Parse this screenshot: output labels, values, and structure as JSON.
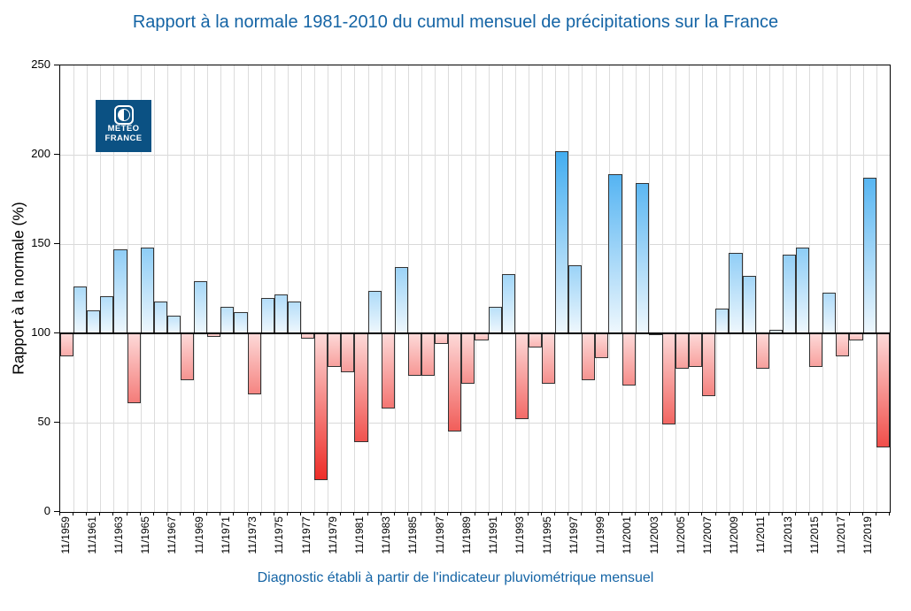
{
  "title": "Rapport à la normale 1981-2010 du cumul mensuel de précipitations sur la France",
  "footer": "Diagnostic établi à partir de l'indicateur pluviométrique mensuel",
  "logo": {
    "line1": "METEO",
    "line2": "FRANCE"
  },
  "y_axis": {
    "label": "Rapport à la normale (%)",
    "ticks": [
      0,
      50,
      100,
      150,
      200,
      250
    ]
  },
  "chart_data": {
    "type": "bar",
    "title": "Rapport à la normale 1981-2010 du cumul mensuel de précipitations sur la France",
    "xlabel": "",
    "ylabel": "Rapport à la normale (%)",
    "ylim": [
      0,
      250
    ],
    "baseline": 100,
    "grid": true,
    "legend": "none",
    "categories": [
      "11/1959",
      "11/1960",
      "11/1961",
      "11/1962",
      "11/1963",
      "11/1964",
      "11/1965",
      "11/1966",
      "11/1967",
      "11/1968",
      "11/1969",
      "11/1970",
      "11/1971",
      "11/1972",
      "11/1973",
      "11/1974",
      "11/1975",
      "11/1976",
      "11/1977",
      "11/1978",
      "11/1979",
      "11/1980",
      "11/1981",
      "11/1982",
      "11/1983",
      "11/1984",
      "11/1985",
      "11/1986",
      "11/1987",
      "11/1988",
      "11/1989",
      "11/1990",
      "11/1991",
      "11/1992",
      "11/1993",
      "11/1994",
      "11/1995",
      "11/1996",
      "11/1997",
      "11/1998",
      "11/1999",
      "11/2000",
      "11/2001",
      "11/2002",
      "11/2003",
      "11/2004",
      "11/2005",
      "11/2006",
      "11/2007",
      "11/2008",
      "11/2009",
      "11/2010",
      "11/2011",
      "11/2012",
      "11/2013",
      "11/2014",
      "11/2015",
      "11/2016",
      "11/2017",
      "11/2018",
      "11/2019",
      "11/2020"
    ],
    "values": [
      87,
      126,
      113,
      121,
      147,
      61,
      148,
      118,
      110,
      74,
      129,
      98,
      115,
      112,
      66,
      120,
      122,
      118,
      97,
      18,
      81,
      78,
      39,
      124,
      58,
      137,
      76,
      76,
      94,
      45,
      72,
      96,
      115,
      133,
      52,
      92,
      72,
      202,
      138,
      74,
      86,
      189,
      71,
      184,
      99,
      49,
      80,
      81,
      65,
      114,
      145,
      132,
      80,
      102,
      144,
      148,
      81,
      123,
      87,
      96,
      187,
      36
    ],
    "x_tick_labels": [
      "11/1959",
      "11/1961",
      "11/1963",
      "11/1965",
      "11/1967",
      "11/1969",
      "11/1971",
      "11/1973",
      "11/1975",
      "11/1977",
      "11/1979",
      "11/1981",
      "11/1983",
      "11/1985",
      "11/1987",
      "11/1989",
      "11/1991",
      "11/1993",
      "11/1995",
      "11/1997",
      "11/1999",
      "11/2001",
      "11/2003",
      "11/2005",
      "11/2007",
      "11/2009",
      "11/2011",
      "11/2013",
      "11/2015",
      "11/2017",
      "11/2019"
    ],
    "colors": {
      "above_base": "#eef7fd",
      "above_light": "#cfe9fb",
      "above_strong": "#3fabf0",
      "below_base": "#fdd9d8",
      "below_light": "#fbc4c2",
      "below_strong": "#ec2722",
      "grid": "#d9d9d9",
      "baseline_line": "#000000",
      "bar_border": "#333333",
      "title_text": "#1464a5",
      "logo_bg": "#0b5183"
    }
  }
}
